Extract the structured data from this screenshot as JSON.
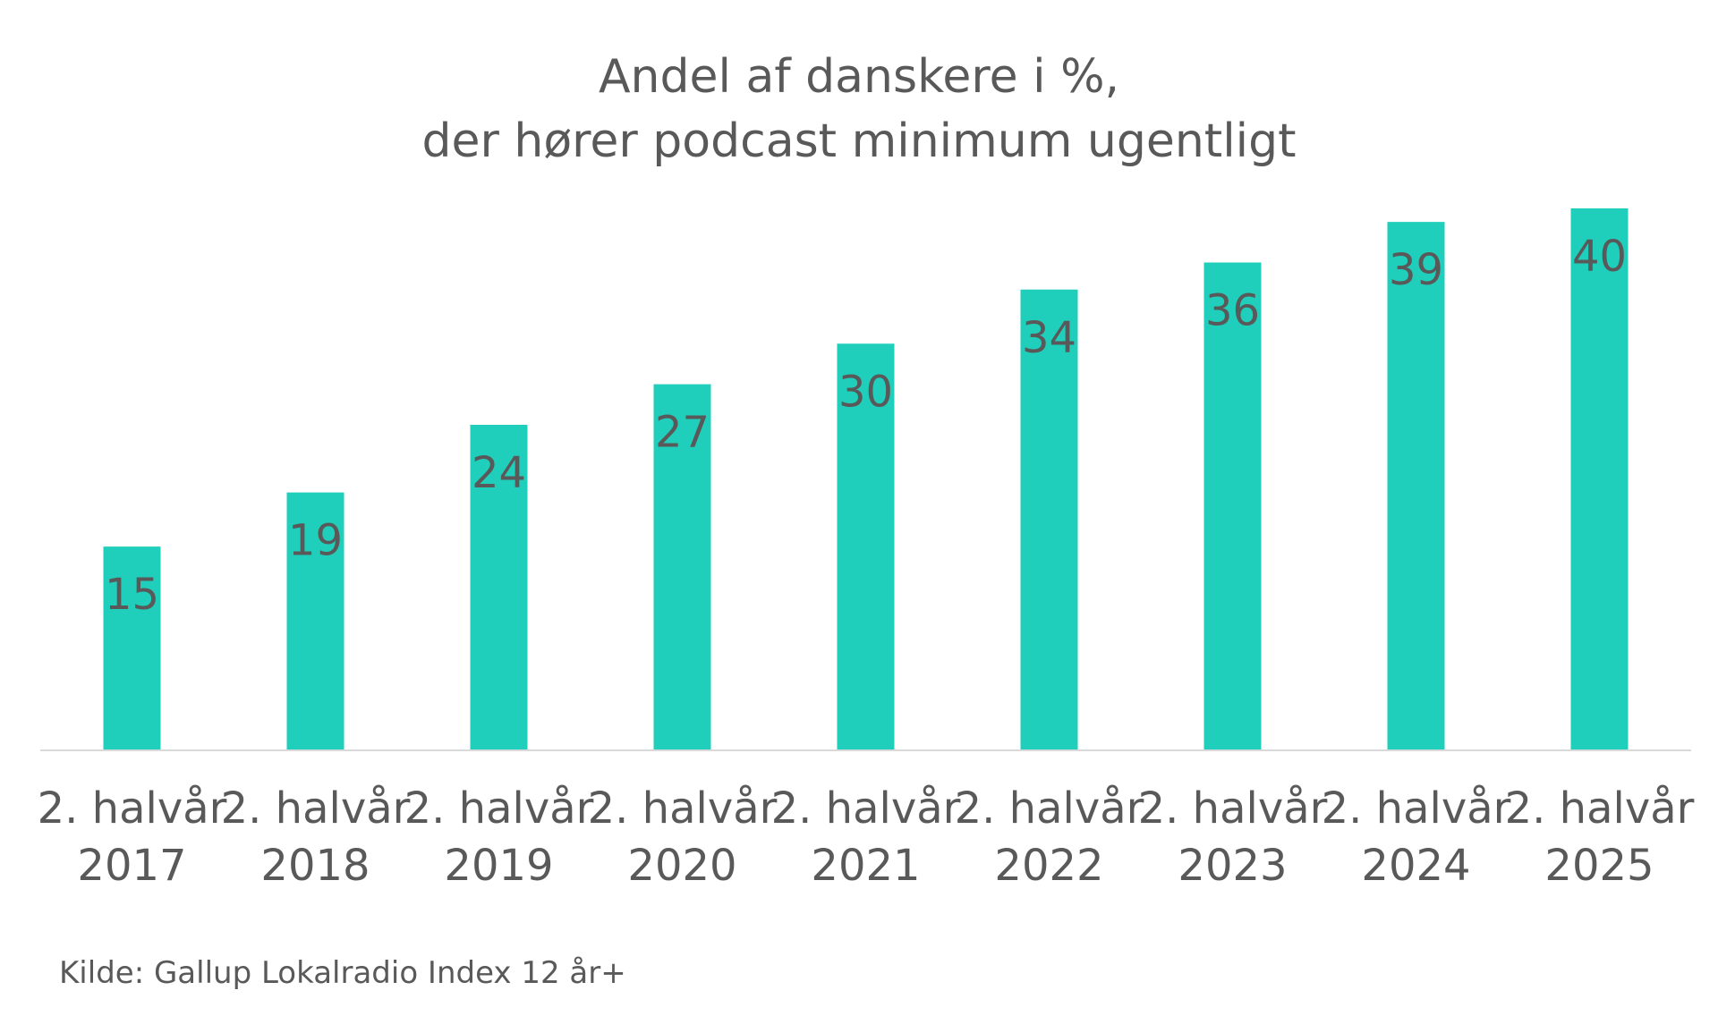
{
  "chart_data": {
    "type": "bar",
    "title_lines": [
      "Andel af danskere i %,",
      "der hører podcast minimum ugentligt"
    ],
    "categories": [
      [
        "2. halvår",
        "2017"
      ],
      [
        "2. halvår",
        "2018"
      ],
      [
        "2. halvår",
        "2019"
      ],
      [
        "2. halvår",
        "2020"
      ],
      [
        "2. halvår",
        "2021"
      ],
      [
        "2. halvår",
        "2022"
      ],
      [
        "2. halvår",
        "2023"
      ],
      [
        "2. halvår",
        "2024"
      ],
      [
        "2. halvår",
        "2025"
      ]
    ],
    "values": [
      15,
      19,
      24,
      27,
      30,
      34,
      36,
      39,
      40
    ],
    "ylim": [
      0,
      40
    ],
    "grid": false,
    "legend": "none",
    "bar_color": "#20CFBB",
    "axis_color": "#D9D9D9",
    "text_color": "#595959"
  },
  "source": "Kilde: Gallup Lokalradio Index 12 år+"
}
